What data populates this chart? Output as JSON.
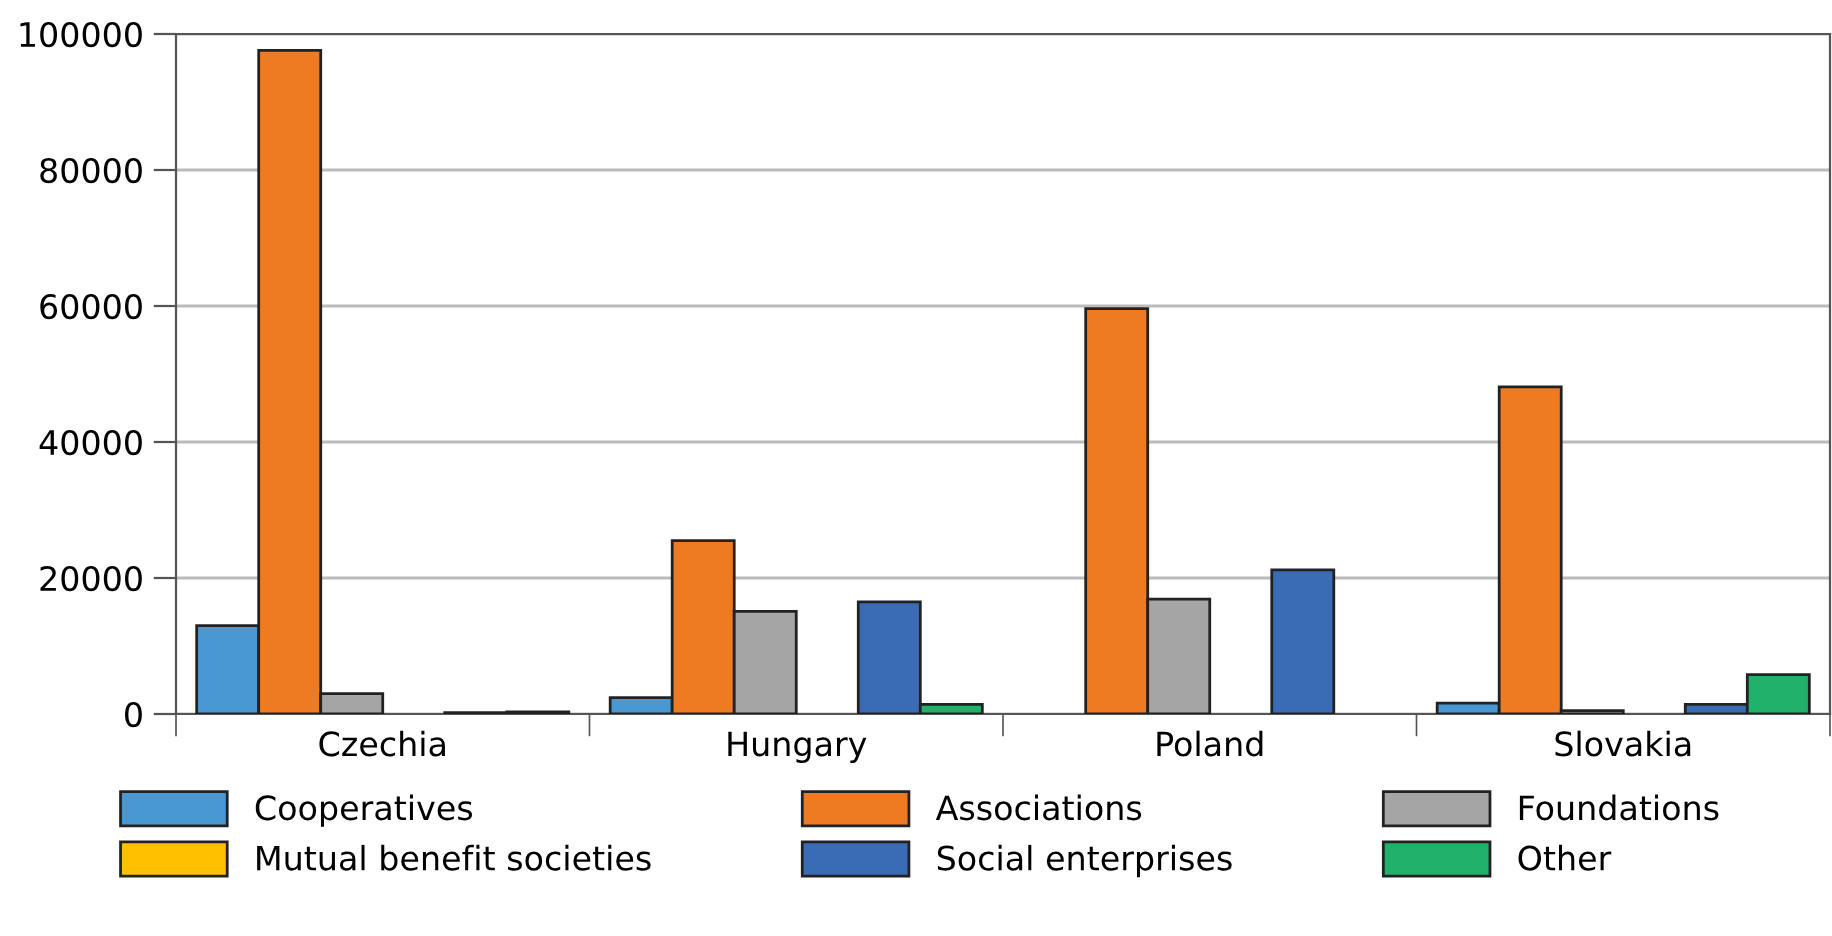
{
  "chart_data": {
    "type": "bar",
    "categories": [
      "Czechia",
      "Hungary",
      "Poland",
      "Slovakia"
    ],
    "series": [
      {
        "name": "Cooperatives",
        "color": "#4a98d3",
        "values": [
          13000,
          2400,
          null,
          1600
        ]
      },
      {
        "name": "Associations",
        "color": "#ee7a22",
        "values": [
          97600,
          25500,
          59600,
          48100
        ]
      },
      {
        "name": "Foundations",
        "color": "#a5a5a5",
        "values": [
          3000,
          15100,
          16900,
          500
        ]
      },
      {
        "name": "Mutual benefit societies",
        "color": "#ffc000",
        "values": [
          0,
          null,
          null,
          0
        ]
      },
      {
        "name": "Social enterprises",
        "color": "#3a6cb5",
        "values": [
          200,
          16500,
          21200,
          1400
        ]
      },
      {
        "name": "Other",
        "color": "#21b16a",
        "values": [
          300,
          1400,
          null,
          5800
        ]
      }
    ],
    "ylim": [
      0,
      100000
    ],
    "yticks": [
      0,
      20000,
      40000,
      60000,
      80000,
      100000
    ],
    "grid": "y",
    "legend": "bottom"
  }
}
